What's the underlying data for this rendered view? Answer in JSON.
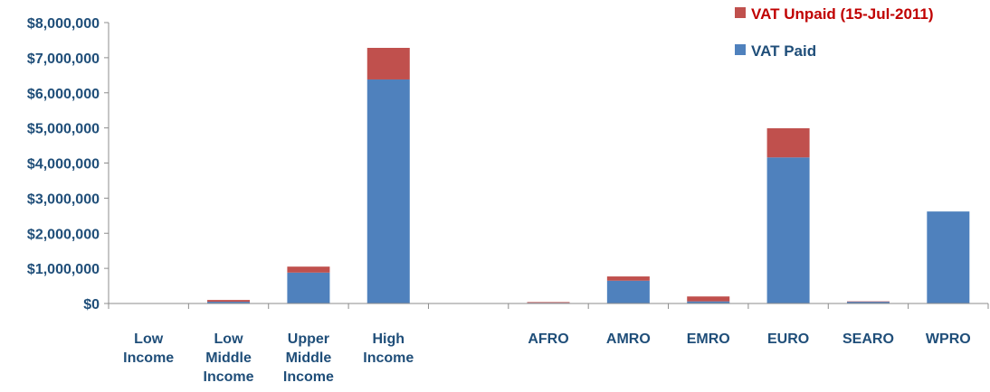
{
  "chart_data": {
    "type": "bar",
    "stacked": true,
    "title": "",
    "xlabel": "",
    "ylabel": "",
    "ylim": [
      0,
      8000000
    ],
    "y_ticks": [
      "$0",
      "$1,000,000",
      "$2,000,000",
      "$3,000,000",
      "$4,000,000",
      "$5,000,000",
      "$6,000,000",
      "$7,000,000",
      "$8,000,000"
    ],
    "y_tick_values": [
      0,
      1000000,
      2000000,
      3000000,
      4000000,
      5000000,
      6000000,
      7000000,
      8000000
    ],
    "grid": false,
    "legend_position": "top-right",
    "categories": [
      [
        "Low",
        "Income"
      ],
      [
        "Low",
        "Middle",
        "Income"
      ],
      [
        "Upper",
        "Middle",
        "Income"
      ],
      [
        "High",
        "Income"
      ],
      [
        ""
      ],
      [
        "AFRO"
      ],
      [
        "AMRO"
      ],
      [
        "EMRO"
      ],
      [
        "EURO"
      ],
      [
        "SEARO"
      ],
      [
        "WPRO"
      ]
    ],
    "series": [
      {
        "name": "VAT Paid",
        "color": "#4f81bd",
        "values": [
          0,
          50000,
          880000,
          6380000,
          0,
          20000,
          650000,
          60000,
          4160000,
          50000,
          2620000
        ]
      },
      {
        "name": "VAT Unpaid (15-Jul-2011)",
        "color": "#c0504d",
        "values": [
          0,
          50000,
          170000,
          900000,
          0,
          20000,
          120000,
          140000,
          830000,
          10000,
          0
        ]
      }
    ]
  },
  "legend": {
    "unpaid_label": "VAT Unpaid (15-Jul-2011)",
    "unpaid_color": "#c0504d",
    "paid_label": "VAT Paid",
    "paid_color": "#4f81bd",
    "unpaid_text_color": "#c00000",
    "paid_text_color": "#1f4e79"
  }
}
